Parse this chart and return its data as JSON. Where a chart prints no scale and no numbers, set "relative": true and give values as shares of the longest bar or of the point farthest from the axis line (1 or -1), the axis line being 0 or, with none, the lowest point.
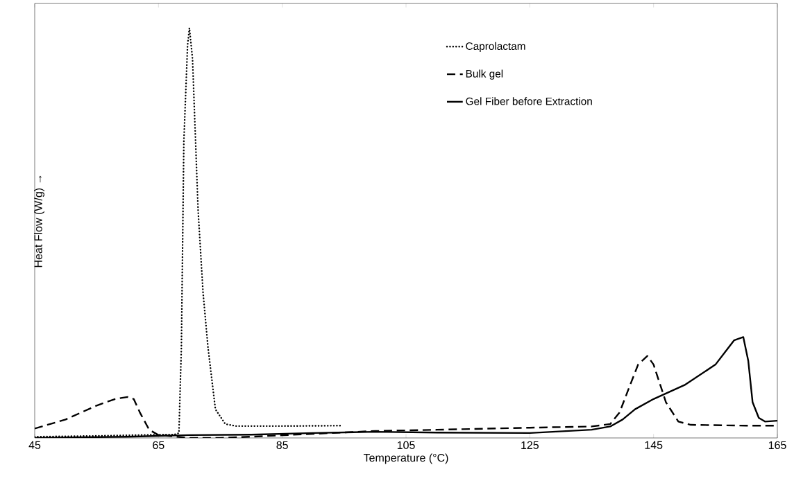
{
  "chart_data": {
    "type": "line",
    "relative": true,
    "xlabel": "Temperature (°C)",
    "ylabel": "Heat Flow (W/g) →",
    "xlim": [
      45,
      165
    ],
    "xticks": [
      45,
      65,
      85,
      105,
      125,
      145,
      165
    ],
    "legend": "top right",
    "grid": false,
    "series": [
      {
        "name": "Caprolactam",
        "color": "#000000",
        "line_style": "dotted",
        "x": [
          45,
          55,
          65,
          67.5,
          68.3,
          68.7,
          69.1,
          69.7,
          70.0,
          70.5,
          71.4,
          72.2,
          73.0,
          74.2,
          75.8,
          77.5,
          85,
          94.6
        ],
        "values": [
          0.003,
          0.005,
          0.008,
          0.008,
          0.012,
          0.221,
          0.724,
          0.958,
          1.0,
          0.925,
          0.556,
          0.355,
          0.221,
          0.07,
          0.034,
          0.029,
          0.029,
          0.03
        ]
      },
      {
        "name": "Bulk gel",
        "color": "#000000",
        "line_style": "dashed",
        "x": [
          45,
          50,
          55,
          58,
          60,
          61,
          62,
          63.5,
          65,
          70,
          75,
          80,
          90,
          100,
          110,
          125,
          135,
          138,
          139.5,
          141,
          142.5,
          144,
          145,
          147,
          149,
          151,
          160,
          165
        ],
        "values": [
          0.023,
          0.045,
          0.079,
          0.095,
          0.1,
          0.095,
          0.062,
          0.02,
          0.007,
          0,
          0,
          0.003,
          0.01,
          0.017,
          0.02,
          0.025,
          0.028,
          0.034,
          0.062,
          0.121,
          0.179,
          0.2,
          0.179,
          0.087,
          0.04,
          0.032,
          0.03,
          0.03
        ]
      },
      {
        "name": "Gel Fiber before Extraction",
        "color": "#000000",
        "line_style": "solid",
        "x": [
          45,
          60,
          70,
          80,
          90,
          100,
          110,
          125,
          135,
          138,
          140,
          142,
          145,
          150,
          155,
          158,
          159.5,
          160.3,
          161,
          162,
          163,
          165
        ],
        "values": [
          0,
          0.003,
          0.007,
          0.008,
          0.012,
          0.015,
          0.013,
          0.012,
          0.02,
          0.028,
          0.045,
          0.07,
          0.095,
          0.129,
          0.179,
          0.238,
          0.246,
          0.188,
          0.087,
          0.049,
          0.04,
          0.042
        ]
      }
    ]
  }
}
